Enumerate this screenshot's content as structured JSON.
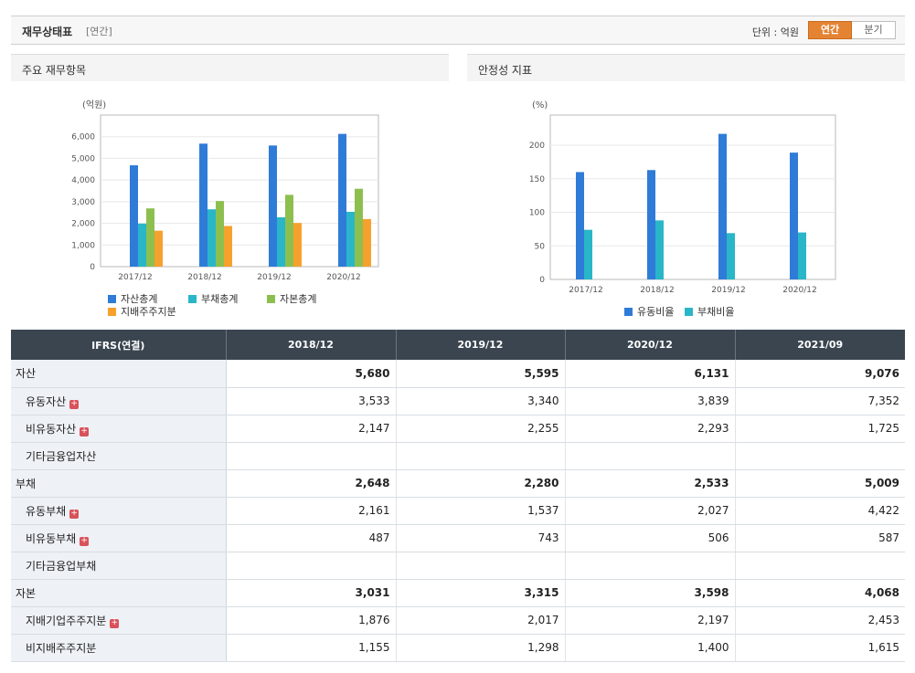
{
  "header": {
    "title": "재무상태표",
    "period_tag": "[연간]",
    "unit_label": "단위 : 억원",
    "toggle": [
      "연간",
      "분기"
    ],
    "toggle_selected": "연간"
  },
  "panels": {
    "left_title": "주요 재무항목",
    "right_title": "안정성 지표"
  },
  "chart_data": [
    {
      "type": "bar",
      "title": "주요 재무항목",
      "ylabel": "(억원)",
      "categories": [
        "2017/12",
        "2018/12",
        "2019/12",
        "2020/12"
      ],
      "series": [
        {
          "name": "자산총계",
          "color": "#2f7bd8",
          "values": [
            4680,
            5680,
            5595,
            6131
          ]
        },
        {
          "name": "부채총계",
          "color": "#29b6c8",
          "values": [
            1990,
            2648,
            2280,
            2533
          ]
        },
        {
          "name": "자본총계",
          "color": "#8dbf4f",
          "values": [
            2690,
            3031,
            3315,
            3598
          ]
        },
        {
          "name": "지배주주지분",
          "color": "#f6a12d",
          "values": [
            1660,
            1876,
            2017,
            2197
          ]
        }
      ],
      "ylim": [
        0,
        7000
      ],
      "yticks": [
        "0",
        "1,000",
        "2,000",
        "3,000",
        "4,000",
        "5,000",
        "6,000"
      ],
      "legend": "bottom"
    },
    {
      "type": "bar",
      "title": "안정성 지표",
      "ylabel": "(%)",
      "categories": [
        "2017/12",
        "2018/12",
        "2019/12",
        "2020/12"
      ],
      "series": [
        {
          "name": "유동비율",
          "color": "#2f7bd8",
          "values": [
            160,
            163,
            217,
            189
          ]
        },
        {
          "name": "부채비율",
          "color": "#29b6c8",
          "values": [
            74,
            88,
            69,
            70
          ]
        }
      ],
      "ylim": [
        0,
        245
      ],
      "yticks": [
        "0",
        "50",
        "100",
        "150",
        "200"
      ],
      "legend": "bottom"
    }
  ],
  "table": {
    "header": [
      "IFRS(연결)",
      "2018/12",
      "2019/12",
      "2020/12",
      "2021/09"
    ],
    "rows": [
      {
        "label": "자산",
        "level": "major",
        "expand": false,
        "values": [
          "5,680",
          "5,595",
          "6,131",
          "9,076"
        ]
      },
      {
        "label": "유동자산",
        "level": "sub",
        "expand": true,
        "values": [
          "3,533",
          "3,340",
          "3,839",
          "7,352"
        ]
      },
      {
        "label": "비유동자산",
        "level": "sub",
        "expand": true,
        "values": [
          "2,147",
          "2,255",
          "2,293",
          "1,725"
        ]
      },
      {
        "label": "기타금융업자산",
        "level": "sub",
        "expand": false,
        "values": [
          "",
          "",
          "",
          ""
        ]
      },
      {
        "label": "부채",
        "level": "major",
        "expand": false,
        "values": [
          "2,648",
          "2,280",
          "2,533",
          "5,009"
        ]
      },
      {
        "label": "유동부채",
        "level": "sub",
        "expand": true,
        "values": [
          "2,161",
          "1,537",
          "2,027",
          "4,422"
        ]
      },
      {
        "label": "비유동부채",
        "level": "sub",
        "expand": true,
        "values": [
          "487",
          "743",
          "506",
          "587"
        ]
      },
      {
        "label": "기타금융업부채",
        "level": "sub",
        "expand": false,
        "values": [
          "",
          "",
          "",
          ""
        ]
      },
      {
        "label": "자본",
        "level": "major",
        "expand": false,
        "values": [
          "3,031",
          "3,315",
          "3,598",
          "4,068"
        ]
      },
      {
        "label": "지배기업주주지분",
        "level": "sub",
        "expand": true,
        "values": [
          "1,876",
          "2,017",
          "2,197",
          "2,453"
        ]
      },
      {
        "label": "비지배주주지분",
        "level": "sub",
        "expand": false,
        "values": [
          "1,155",
          "1,298",
          "1,400",
          "1,615"
        ]
      }
    ]
  }
}
